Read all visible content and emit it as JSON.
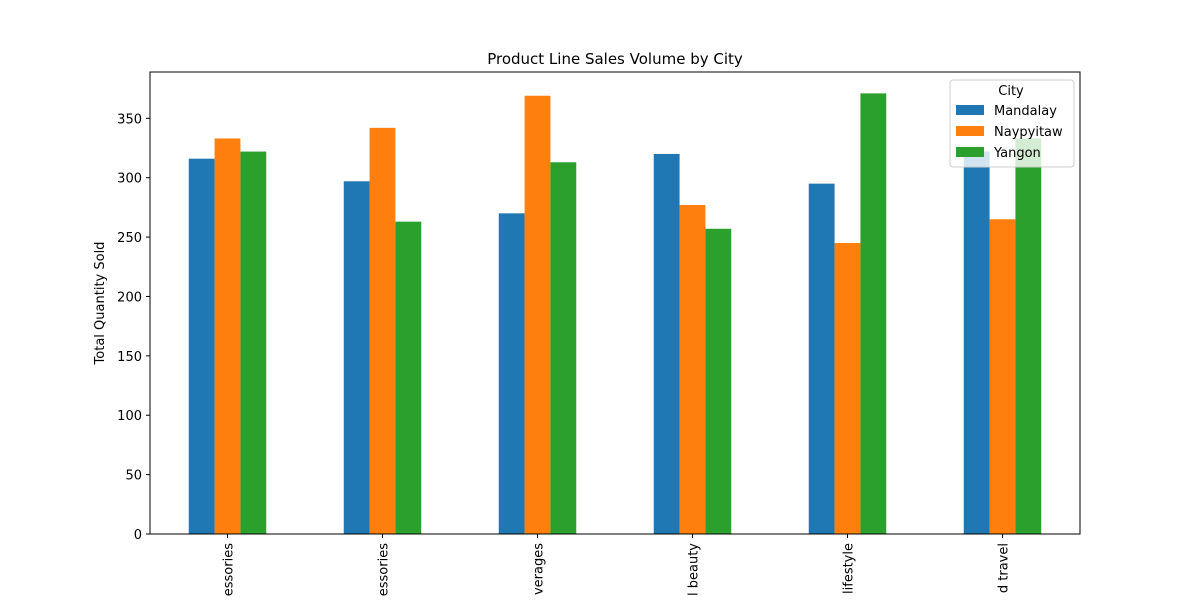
{
  "chart_data": {
    "type": "bar",
    "title": "Product Line Sales Volume by City",
    "xlabel": "",
    "ylabel": "Total Quantity Sold",
    "categories": [
      "essories",
      "essories",
      "verages",
      "l beauty",
      "lifestyle",
      "d travel"
    ],
    "series": [
      {
        "name": "Mandalay",
        "color": "#1f77b4",
        "values": [
          316,
          297,
          270,
          320,
          295,
          322
        ]
      },
      {
        "name": "Naypyitaw",
        "color": "#ff7f0e",
        "values": [
          333,
          342,
          369,
          277,
          245,
          265
        ]
      },
      {
        "name": "Yangon",
        "color": "#2ca02c",
        "values": [
          322,
          263,
          313,
          257,
          371,
          333
        ]
      }
    ],
    "ylim": [
      0,
      389
    ],
    "yticks": [
      0,
      50,
      100,
      150,
      200,
      250,
      300,
      350
    ],
    "legend": {
      "title": "City",
      "position": "top-right"
    },
    "grid": false
  }
}
